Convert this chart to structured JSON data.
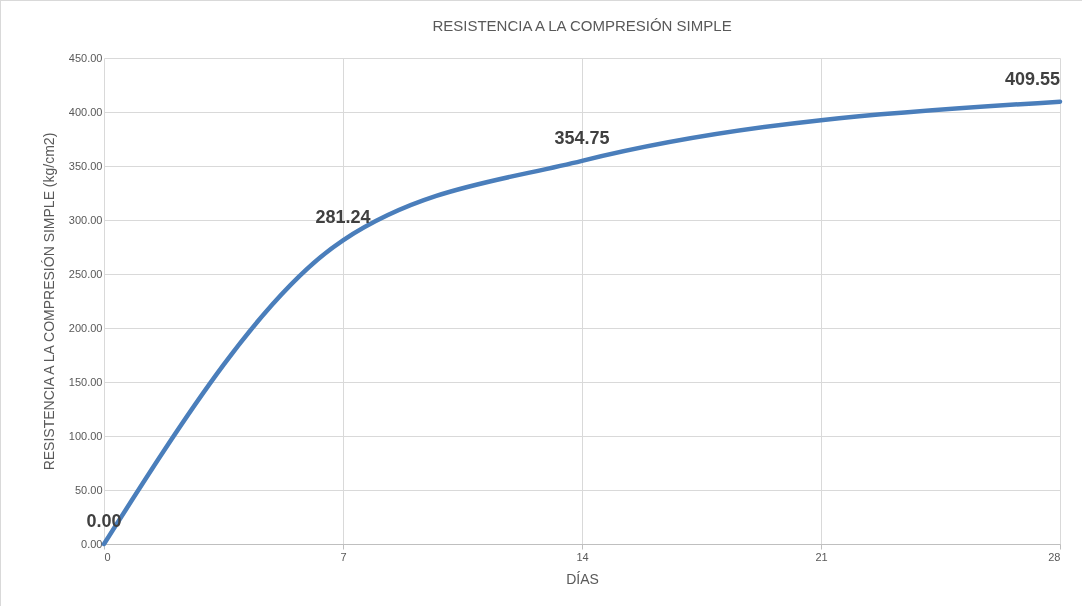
{
  "chart_data": {
    "type": "line",
    "title": "RESISTENCIA A LA COMPRESIÓN SIMPLE",
    "xlabel": "DÍAS",
    "ylabel": "RESISTENCIA A LA COMPRESIÓN SIMPLE (kg/cm2)",
    "x": [
      0,
      7,
      14,
      28
    ],
    "series": [
      {
        "color": "#4a7ebb",
        "values": [
          0,
          281.24,
          354.75,
          409.55
        ],
        "value_labels": [
          "0.00",
          "281.24",
          "354.75",
          "409.55"
        ]
      }
    ],
    "xlim": [
      0,
      28
    ],
    "xticks": [
      0,
      7,
      14,
      21,
      28
    ],
    "ylim": [
      0,
      450
    ],
    "yticks": [
      {
        "value": 0,
        "label": "0.00"
      },
      {
        "value": 50,
        "label": "50.00"
      },
      {
        "value": 100,
        "label": "100.00"
      },
      {
        "value": 150,
        "label": "150.00"
      },
      {
        "value": 200,
        "label": "200.00"
      },
      {
        "value": 250,
        "label": "250.00"
      },
      {
        "value": 300,
        "label": "300.00"
      },
      {
        "value": 350,
        "label": "350.00"
      },
      {
        "value": 400,
        "label": "400.00"
      },
      {
        "value": 450,
        "label": "450.00"
      }
    ],
    "grid": true,
    "marker": "none",
    "line_style": "solid"
  }
}
